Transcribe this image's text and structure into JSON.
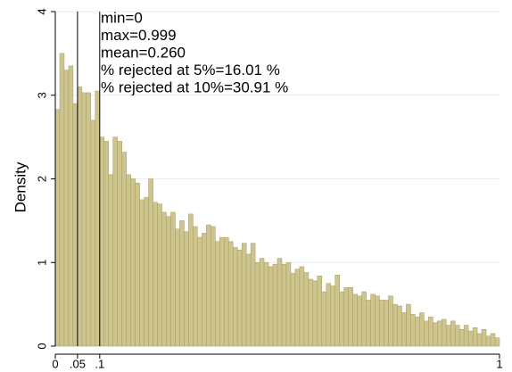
{
  "chart_data": {
    "type": "histogram",
    "y_label": "Density",
    "annotations": [
      "min=0",
      "max=0.999",
      "mean=0.260",
      "% rejected at 5%=16.01 %",
      "% rejected at 10%=30.91 %"
    ],
    "bins": [
      0,
      0.01,
      0.02,
      0.03,
      0.04,
      0.05,
      0.06,
      0.07,
      0.08,
      0.09,
      0.1,
      0.11,
      0.12,
      0.13,
      0.14,
      0.15,
      0.16,
      0.17,
      0.18,
      0.19,
      0.2,
      0.21,
      0.22,
      0.23,
      0.24,
      0.25,
      0.26,
      0.27,
      0.28,
      0.29,
      0.3,
      0.31,
      0.32,
      0.33,
      0.34,
      0.35,
      0.36,
      0.37,
      0.38,
      0.39,
      0.4,
      0.41,
      0.42,
      0.43,
      0.44,
      0.45,
      0.46,
      0.47,
      0.48,
      0.49,
      0.5,
      0.51,
      0.52,
      0.53,
      0.54,
      0.55,
      0.56,
      0.57,
      0.58,
      0.59,
      0.6,
      0.61,
      0.62,
      0.63,
      0.64,
      0.65,
      0.66,
      0.67,
      0.68,
      0.69,
      0.7,
      0.71,
      0.72,
      0.73,
      0.74,
      0.75,
      0.76,
      0.77,
      0.78,
      0.79,
      0.8,
      0.81,
      0.82,
      0.83,
      0.84,
      0.85,
      0.86,
      0.87,
      0.88,
      0.89,
      0.9,
      0.91,
      0.92,
      0.93,
      0.94,
      0.95,
      0.96,
      0.97,
      0.98,
      0.99,
      1
    ],
    "values": [
      2.83,
      3.5,
      3.3,
      3.35,
      2.9,
      3.1,
      3.03,
      3.03,
      2.7,
      3.05,
      2.5,
      2.45,
      2.05,
      2.5,
      2.45,
      2.32,
      2.05,
      2.0,
      1.95,
      1.75,
      1.78,
      2.0,
      1.72,
      1.7,
      1.6,
      1.55,
      1.6,
      1.4,
      1.5,
      1.37,
      1.58,
      1.43,
      1.3,
      1.35,
      1.45,
      1.43,
      1.25,
      1.3,
      1.3,
      1.25,
      1.18,
      1.15,
      1.23,
      1.1,
      1.23,
      1.0,
      1.05,
      1.0,
      0.95,
      0.98,
      1.05,
      0.98,
      1.0,
      0.87,
      0.92,
      0.95,
      0.88,
      0.8,
      0.78,
      0.84,
      0.65,
      0.75,
      0.72,
      0.85,
      0.65,
      0.7,
      0.7,
      0.62,
      0.6,
      0.65,
      0.55,
      0.62,
      0.6,
      0.55,
      0.55,
      0.6,
      0.5,
      0.48,
      0.4,
      0.5,
      0.38,
      0.35,
      0.4,
      0.3,
      0.35,
      0.28,
      0.3,
      0.32,
      0.25,
      0.3,
      0.25,
      0.2,
      0.25,
      0.18,
      0.22,
      0.15,
      0.2,
      0.12,
      0.15,
      0.1
    ],
    "color": "#cdc48e",
    "vlines": [
      0.05,
      0.1
    ],
    "xlim": [
      0,
      1
    ],
    "ylim": [
      0,
      4
    ],
    "xticks": [
      0,
      {
        "value": 0.05,
        "label": ".05"
      },
      {
        "value": 0.1,
        "label": ".1"
      },
      1
    ],
    "yticks": [
      0,
      1,
      2,
      3,
      4
    ],
    "grid": true
  }
}
